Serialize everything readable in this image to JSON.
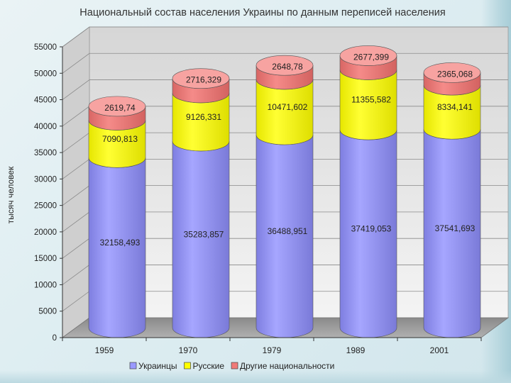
{
  "chart_data": {
    "type": "bar",
    "title": "Национальный состав населения Украины по данным переписей населения",
    "ylabel": "тысяч человек",
    "xlabel": "",
    "categories": [
      "1959",
      "1970",
      "1979",
      "1989",
      "2001"
    ],
    "series": [
      {
        "name": "Украинцы",
        "values": [
          32158.493,
          35283.857,
          36488.951,
          37419.053,
          37541.693
        ],
        "labels": [
          "32158,493",
          "35283,857",
          "36488,951",
          "37419,053",
          "37541,693"
        ]
      },
      {
        "name": "Русские",
        "values": [
          7090.813,
          9126.331,
          10471.602,
          11355.582,
          8334.141
        ],
        "labels": [
          "7090,813",
          "9126,331",
          "10471,602",
          "11355,582",
          "8334,141"
        ]
      },
      {
        "name": "Другие национальности",
        "values": [
          2619.74,
          2716.329,
          2648.78,
          2677.399,
          2365.068
        ],
        "labels": [
          "2619,74",
          "2716,329",
          "2648,78",
          "2677,399",
          "2365,068"
        ]
      }
    ],
    "ylim": [
      0,
      55000
    ],
    "yticks": [
      0,
      5000,
      10000,
      15000,
      20000,
      25000,
      30000,
      35000,
      40000,
      45000,
      50000,
      55000
    ],
    "stacked": true,
    "shape": "cylinder",
    "grid": true,
    "legend_position": "bottom",
    "colors": {
      "Украинцы": "#9999ff",
      "Русские": "#ffff00",
      "Другие национальности": "#f07a78"
    }
  }
}
